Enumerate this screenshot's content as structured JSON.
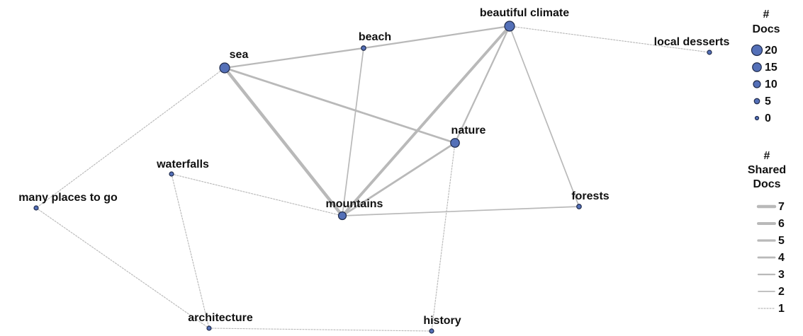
{
  "nodes": [
    {
      "label": "beautiful climate",
      "docs": 18
    },
    {
      "label": "beach",
      "docs": 3
    },
    {
      "label": "sea",
      "docs": 18
    },
    {
      "label": "local desserts",
      "docs": 2
    },
    {
      "label": "nature",
      "docs": 15
    },
    {
      "label": "waterfalls",
      "docs": 2
    },
    {
      "label": "many places to go",
      "docs": 2
    },
    {
      "label": "mountains",
      "docs": 12
    },
    {
      "label": "forests",
      "docs": 3
    },
    {
      "label": "architecture",
      "docs": 2
    },
    {
      "label": "history",
      "docs": 2
    }
  ],
  "edges": [
    {
      "source": 2,
      "target": 1,
      "shared": 3
    },
    {
      "source": 1,
      "target": 0,
      "shared": 3
    },
    {
      "source": 0,
      "target": 3,
      "shared": 1
    },
    {
      "source": 0,
      "target": 7,
      "shared": 6
    },
    {
      "source": 0,
      "target": 4,
      "shared": 3
    },
    {
      "source": 0,
      "target": 8,
      "shared": 2
    },
    {
      "source": 2,
      "target": 7,
      "shared": 7
    },
    {
      "source": 2,
      "target": 4,
      "shared": 4
    },
    {
      "source": 2,
      "target": 6,
      "shared": 1
    },
    {
      "source": 1,
      "target": 7,
      "shared": 2
    },
    {
      "source": 4,
      "target": 7,
      "shared": 4
    },
    {
      "source": 4,
      "target": 10,
      "shared": 1
    },
    {
      "source": 7,
      "target": 8,
      "shared": 2
    },
    {
      "source": 5,
      "target": 7,
      "shared": 1
    },
    {
      "source": 5,
      "target": 9,
      "shared": 1
    },
    {
      "source": 6,
      "target": 9,
      "shared": 1
    },
    {
      "source": 9,
      "target": 10,
      "shared": 1
    }
  ],
  "legend_docs": {
    "title": [
      "#",
      "Docs"
    ],
    "items": [
      20,
      15,
      10,
      5,
      0
    ]
  },
  "legend_shared": {
    "title": [
      "#",
      "Shared",
      "Docs"
    ],
    "items": [
      7,
      6,
      5,
      4,
      3,
      2,
      1
    ]
  }
}
